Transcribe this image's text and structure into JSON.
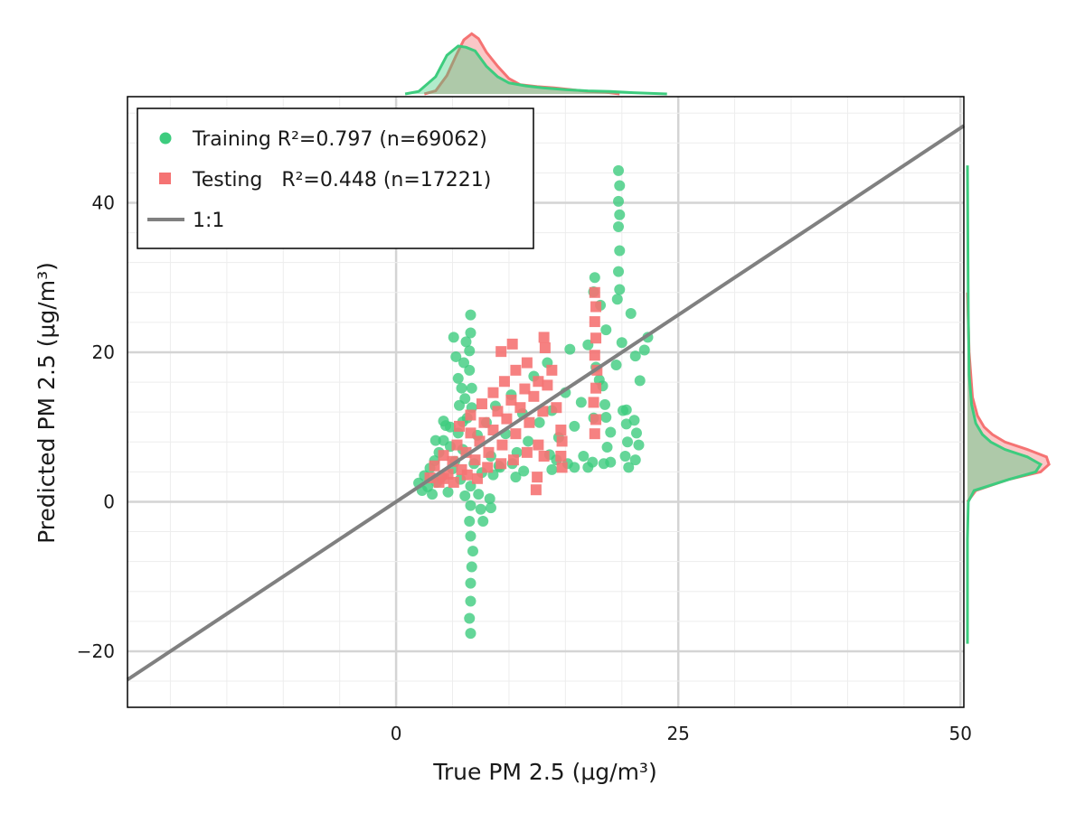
{
  "chart_data": {
    "type": "scatter",
    "xlabel": "True PM 2.5 (μg/m³)",
    "ylabel": "Predicted PM 2.5 (μg/m³)",
    "xlim": [
      -23.8,
      50.3
    ],
    "ylim": [
      -27.5,
      54.2
    ],
    "x_ticks": [
      0,
      25,
      50
    ],
    "x_tick_labels": [
      "0",
      "25",
      "50"
    ],
    "y_ticks": [
      -20,
      0,
      20,
      40
    ],
    "y_tick_labels": [
      "−20",
      "0",
      "20",
      "40"
    ],
    "x_minor_step": 5,
    "y_minor_step": 4,
    "grid": true,
    "legend_position": "top-left",
    "reference_line": {
      "label": "1:1",
      "color": "#808080"
    },
    "series": [
      {
        "name": "Training",
        "legend_label": "Training R²=0.797 (n=69062)",
        "color": "#3dcc7e",
        "marker": "circle",
        "points": [
          [
            2.0,
            2.5
          ],
          [
            2.3,
            1.5
          ],
          [
            2.5,
            3.5
          ],
          [
            2.8,
            2.0
          ],
          [
            3.0,
            4.5
          ],
          [
            3.2,
            1.0
          ],
          [
            3.4,
            5.5
          ],
          [
            3.6,
            2.6
          ],
          [
            3.8,
            6.6
          ],
          [
            4.0,
            3.3
          ],
          [
            4.2,
            8.2
          ],
          [
            4.4,
            10.2
          ],
          [
            4.6,
            1.3
          ],
          [
            4.8,
            7.4
          ],
          [
            5.0,
            4.4
          ],
          [
            5.2,
            5.4
          ],
          [
            5.5,
            9.2
          ],
          [
            5.7,
            3.0
          ],
          [
            5.9,
            7.0
          ],
          [
            6.1,
            0.8
          ],
          [
            6.3,
            11.2
          ],
          [
            6.6,
            2.1
          ],
          [
            6.9,
            5.1
          ],
          [
            7.2,
            8.9
          ],
          [
            7.6,
            3.9
          ],
          [
            8.0,
            10.6
          ],
          [
            8.4,
            6.1
          ],
          [
            8.8,
            12.8
          ],
          [
            9.2,
            4.6
          ],
          [
            9.7,
            9.1
          ],
          [
            10.2,
            14.3
          ],
          [
            10.7,
            6.6
          ],
          [
            11.2,
            11.8
          ],
          [
            11.7,
            8.1
          ],
          [
            12.2,
            16.8
          ],
          [
            12.7,
            10.6
          ],
          [
            13.4,
            18.6
          ],
          [
            13.8,
            12.2
          ],
          [
            14.4,
            8.6
          ],
          [
            15.0,
            14.6
          ],
          [
            15.4,
            20.4
          ],
          [
            15.8,
            10.1
          ],
          [
            16.4,
            13.3
          ],
          [
            17.0,
            21.0
          ],
          [
            17.5,
            11.2
          ],
          [
            18.0,
            16.3
          ],
          [
            18.6,
            23.0
          ],
          [
            19.0,
            5.3
          ],
          [
            19.5,
            18.3
          ],
          [
            20.0,
            21.3
          ],
          [
            20.4,
            12.3
          ],
          [
            20.8,
            25.2
          ],
          [
            21.2,
            19.5
          ],
          [
            21.6,
            16.2
          ],
          [
            22.0,
            20.3
          ],
          [
            22.3,
            22.0
          ],
          [
            6.6,
            25.0
          ],
          [
            6.6,
            22.6
          ],
          [
            6.5,
            20.2
          ],
          [
            6.5,
            17.6
          ],
          [
            6.7,
            15.2
          ],
          [
            6.7,
            12.6
          ],
          [
            5.1,
            22.0
          ],
          [
            5.3,
            19.4
          ],
          [
            5.5,
            16.5
          ],
          [
            5.6,
            12.9
          ],
          [
            5.9,
            10.7
          ],
          [
            6.2,
            21.4
          ],
          [
            6.0,
            18.6
          ],
          [
            5.8,
            15.2
          ],
          [
            6.1,
            13.8
          ],
          [
            6.6,
            -0.5
          ],
          [
            6.5,
            -2.6
          ],
          [
            6.6,
            -4.6
          ],
          [
            6.8,
            -6.6
          ],
          [
            6.7,
            -8.7
          ],
          [
            6.6,
            -10.9
          ],
          [
            6.6,
            -13.3
          ],
          [
            6.5,
            -15.6
          ],
          [
            6.6,
            -17.6
          ],
          [
            7.3,
            1.0
          ],
          [
            7.5,
            -1.0
          ],
          [
            7.7,
            -2.6
          ],
          [
            8.3,
            0.4
          ],
          [
            8.4,
            -0.8
          ],
          [
            19.7,
            44.3
          ],
          [
            19.8,
            42.3
          ],
          [
            19.7,
            40.2
          ],
          [
            19.8,
            38.4
          ],
          [
            19.7,
            36.8
          ],
          [
            19.8,
            33.6
          ],
          [
            19.7,
            30.8
          ],
          [
            19.8,
            28.4
          ],
          [
            19.6,
            27.1
          ],
          [
            17.6,
            30.0
          ],
          [
            17.5,
            28.1
          ],
          [
            18.1,
            26.3
          ],
          [
            17.7,
            18.0
          ],
          [
            18.3,
            15.5
          ],
          [
            18.5,
            13.0
          ],
          [
            18.6,
            11.3
          ],
          [
            19.0,
            9.3
          ],
          [
            18.7,
            7.3
          ],
          [
            18.4,
            5.1
          ],
          [
            20.1,
            12.2
          ],
          [
            20.4,
            10.4
          ],
          [
            20.5,
            8.0
          ],
          [
            20.3,
            6.1
          ],
          [
            20.6,
            4.6
          ],
          [
            21.1,
            10.9
          ],
          [
            21.3,
            9.2
          ],
          [
            21.5,
            7.6
          ],
          [
            21.2,
            5.6
          ],
          [
            16.6,
            6.1
          ],
          [
            17.0,
            4.6
          ],
          [
            17.4,
            5.3
          ],
          [
            15.8,
            4.6
          ],
          [
            15.2,
            5.1
          ],
          [
            13.6,
            6.3
          ],
          [
            13.8,
            4.3
          ],
          [
            14.2,
            5.6
          ],
          [
            10.3,
            5.1
          ],
          [
            10.6,
            3.3
          ],
          [
            11.3,
            4.1
          ],
          [
            8.6,
            3.6
          ],
          [
            9.1,
            4.8
          ],
          [
            3.5,
            8.2
          ],
          [
            4.2,
            10.8
          ],
          [
            4.8,
            10.0
          ]
        ]
      },
      {
        "name": "Testing",
        "legend_label": "Testing   R²=0.448 (n=17221)",
        "color": "#f57373",
        "marker": "square",
        "points": [
          [
            3.0,
            3.2
          ],
          [
            3.4,
            4.8
          ],
          [
            3.8,
            2.6
          ],
          [
            4.2,
            6.2
          ],
          [
            4.6,
            3.7
          ],
          [
            5.0,
            5.4
          ],
          [
            5.4,
            7.6
          ],
          [
            5.8,
            4.3
          ],
          [
            6.2,
            6.6
          ],
          [
            6.6,
            9.2
          ],
          [
            7.0,
            5.6
          ],
          [
            7.4,
            8.1
          ],
          [
            7.8,
            10.6
          ],
          [
            8.2,
            6.6
          ],
          [
            8.6,
            9.6
          ],
          [
            9.0,
            12.1
          ],
          [
            9.4,
            7.6
          ],
          [
            9.8,
            11.1
          ],
          [
            10.2,
            13.6
          ],
          [
            10.6,
            9.1
          ],
          [
            11.0,
            12.6
          ],
          [
            11.4,
            15.1
          ],
          [
            11.8,
            10.6
          ],
          [
            12.2,
            14.1
          ],
          [
            12.6,
            16.1
          ],
          [
            13.0,
            12.1
          ],
          [
            13.4,
            15.6
          ],
          [
            13.8,
            17.6
          ],
          [
            4.2,
            3.1
          ],
          [
            5.1,
            2.6
          ],
          [
            6.3,
            3.6
          ],
          [
            7.2,
            3.1
          ],
          [
            8.1,
            4.6
          ],
          [
            9.3,
            5.1
          ],
          [
            10.4,
            5.6
          ],
          [
            11.6,
            6.6
          ],
          [
            5.6,
            10.1
          ],
          [
            6.6,
            11.6
          ],
          [
            7.6,
            13.1
          ],
          [
            8.6,
            14.6
          ],
          [
            9.6,
            16.1
          ],
          [
            10.6,
            17.6
          ],
          [
            11.6,
            18.6
          ],
          [
            9.3,
            20.1
          ],
          [
            10.3,
            21.1
          ],
          [
            13.1,
            22.0
          ],
          [
            13.2,
            20.6
          ],
          [
            12.6,
            7.6
          ],
          [
            13.1,
            6.1
          ],
          [
            14.6,
            9.6
          ],
          [
            14.2,
            12.6
          ],
          [
            17.6,
            28.0
          ],
          [
            17.7,
            26.1
          ],
          [
            17.6,
            24.1
          ],
          [
            17.7,
            21.9
          ],
          [
            17.6,
            19.6
          ],
          [
            17.8,
            17.6
          ],
          [
            17.7,
            15.2
          ],
          [
            17.5,
            13.3
          ],
          [
            17.7,
            11.0
          ],
          [
            17.6,
            9.1
          ],
          [
            14.7,
            8.1
          ],
          [
            14.6,
            6.1
          ],
          [
            14.7,
            4.6
          ],
          [
            12.5,
            3.3
          ],
          [
            12.4,
            1.6
          ]
        ]
      }
    ],
    "marginal_densities": {
      "x_top": {
        "Training": [
          [
            0.8,
            0.0
          ],
          [
            2.0,
            0.04
          ],
          [
            3.5,
            0.28
          ],
          [
            4.5,
            0.63
          ],
          [
            5.5,
            0.78
          ],
          [
            6.2,
            0.76
          ],
          [
            7.0,
            0.7
          ],
          [
            8.0,
            0.45
          ],
          [
            9.0,
            0.28
          ],
          [
            10.0,
            0.18
          ],
          [
            11.5,
            0.13
          ],
          [
            13.0,
            0.1
          ],
          [
            15.0,
            0.07
          ],
          [
            17.0,
            0.05
          ],
          [
            19.0,
            0.04
          ],
          [
            21.0,
            0.02
          ],
          [
            24.0,
            0.0
          ]
        ],
        "Testing": [
          [
            2.5,
            0.0
          ],
          [
            3.5,
            0.05
          ],
          [
            4.5,
            0.3
          ],
          [
            5.3,
            0.62
          ],
          [
            6.0,
            0.88
          ],
          [
            6.7,
            0.98
          ],
          [
            7.3,
            0.9
          ],
          [
            8.0,
            0.68
          ],
          [
            9.0,
            0.45
          ],
          [
            10.0,
            0.25
          ],
          [
            11.0,
            0.15
          ],
          [
            12.5,
            0.12
          ],
          [
            14.0,
            0.1
          ],
          [
            15.5,
            0.07
          ],
          [
            17.0,
            0.04
          ],
          [
            18.5,
            0.03
          ],
          [
            19.8,
            0.0
          ]
        ]
      },
      "y_right": {
        "Training": [
          [
            -19.0,
            0.0
          ],
          [
            -5.0,
            0.0
          ],
          [
            0.0,
            0.01
          ],
          [
            1.5,
            0.08
          ],
          [
            3.0,
            0.5
          ],
          [
            4.0,
            0.82
          ],
          [
            5.0,
            0.88
          ],
          [
            6.0,
            0.72
          ],
          [
            7.0,
            0.45
          ],
          [
            8.0,
            0.28
          ],
          [
            9.0,
            0.18
          ],
          [
            10.5,
            0.1
          ],
          [
            13.0,
            0.05
          ],
          [
            17.0,
            0.02
          ],
          [
            25.0,
            0.01
          ],
          [
            45.0,
            0.0
          ]
        ],
        "Testing": [
          [
            0.0,
            0.0
          ],
          [
            1.5,
            0.1
          ],
          [
            3.0,
            0.5
          ],
          [
            4.0,
            0.88
          ],
          [
            5.0,
            0.98
          ],
          [
            6.0,
            0.95
          ],
          [
            7.0,
            0.72
          ],
          [
            8.0,
            0.45
          ],
          [
            9.0,
            0.3
          ],
          [
            10.0,
            0.2
          ],
          [
            11.5,
            0.12
          ],
          [
            14.0,
            0.06
          ],
          [
            20.0,
            0.02
          ],
          [
            28.0,
            0.0
          ]
        ]
      }
    }
  },
  "legend": {
    "training": "Training R²=0.797 (n=69062)",
    "testing": "Testing   R²=0.448 (n=17221)",
    "ref": "1:1"
  }
}
